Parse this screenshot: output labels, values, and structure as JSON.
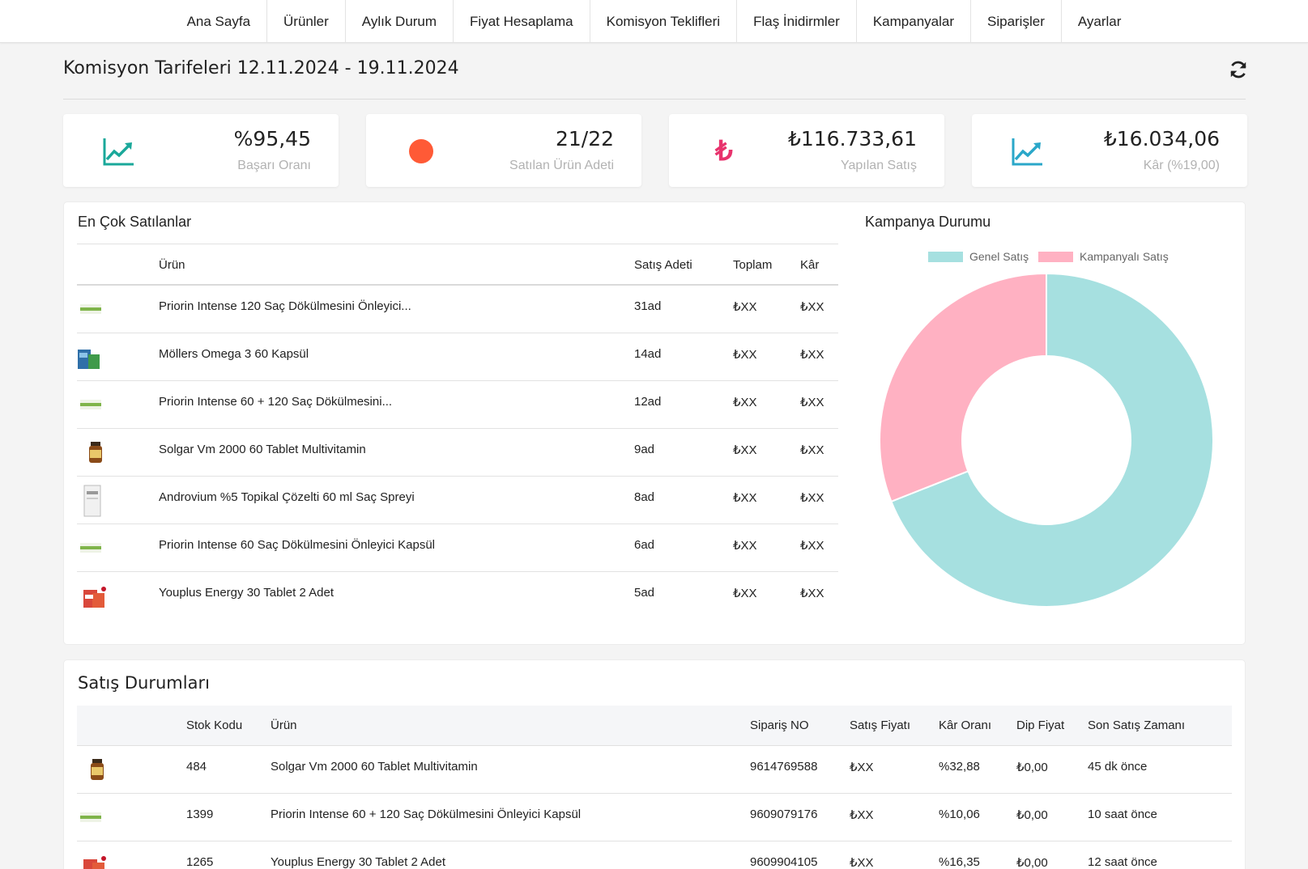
{
  "nav": [
    "Ana Sayfa",
    "Ürünler",
    "Aylık Durum",
    "Fiyat Hesaplama",
    "Komisyon Teklifleri",
    "Flaş İnidirmler",
    "Kampanyalar",
    "Siparişler",
    "Ayarlar"
  ],
  "header": {
    "title": "Komisyon Tarifeleri 12.11.2024 - 19.11.2024"
  },
  "stats": [
    {
      "icon": "trend-up-icon",
      "value": "%95,45",
      "label": "Başarı Oranı",
      "color": "#1aa89a"
    },
    {
      "icon": "circle-dot-icon",
      "value": "21/22",
      "label": "Satılan Ürün Adeti",
      "color": "#ff5a36"
    },
    {
      "icon": "lira-icon",
      "value": "₺116.733,61",
      "label": "Yapılan Satış",
      "color": "#e8336d"
    },
    {
      "icon": "trend-up-icon",
      "value": "₺16.034,06",
      "label": "Kâr (%19,00)",
      "color": "#2aa7c9"
    }
  ],
  "best_sellers": {
    "title": "En Çok Satılanlar",
    "columns": {
      "product": "Ürün",
      "qty": "Satış Adeti",
      "total": "Toplam",
      "profit": "Kâr"
    },
    "rows": [
      {
        "thumb": "green-box",
        "name": "Priorin Intense 120 Saç Dökülmesini Önleyici...",
        "qty": "31ad",
        "total": "₺XX",
        "profit": "₺XX"
      },
      {
        "thumb": "omega-box",
        "name": "Möllers Omega 3 60 Kapsül",
        "qty": "14ad",
        "total": "₺XX",
        "profit": "₺XX"
      },
      {
        "thumb": "green-box",
        "name": "Priorin Intense 60 + 120 Saç Dökülmesini...",
        "qty": "12ad",
        "total": "₺XX",
        "profit": "₺XX"
      },
      {
        "thumb": "bottle",
        "name": "Solgar Vm 2000 60 Tablet Multivitamin",
        "qty": "9ad",
        "total": "₺XX",
        "profit": "₺XX"
      },
      {
        "thumb": "white-box",
        "name": "Androvium %5 Topikal Çözelti 60 ml Saç Spreyi",
        "qty": "8ad",
        "total": "₺XX",
        "profit": "₺XX"
      },
      {
        "thumb": "green-box",
        "name": "Priorin Intense 60 Saç Dökülmesini Önleyici Kapsül",
        "qty": "6ad",
        "total": "₺XX",
        "profit": "₺XX"
      },
      {
        "thumb": "red-box",
        "name": "Youplus Energy 30 Tablet 2 Adet",
        "qty": "5ad",
        "total": "₺XX",
        "profit": "₺XX"
      }
    ]
  },
  "campaign": {
    "title": "Kampanya Durumu",
    "chart_data": {
      "type": "pie",
      "variant": "doughnut",
      "categories": [
        "Genel Satış",
        "Kampanyalı Satış"
      ],
      "values": [
        69,
        31
      ],
      "colors": [
        "#a6e0e0",
        "#ffb1c2"
      ],
      "legend": "top"
    }
  },
  "sales_status": {
    "title": "Satış Durumları",
    "columns": {
      "stock": "Stok Kodu",
      "product": "Ürün",
      "order": "Sipariş NO",
      "price": "Satış Fiyatı",
      "margin": "Kâr Oranı",
      "floor": "Dip Fiyat",
      "last": "Son Satış Zamanı"
    },
    "rows": [
      {
        "thumb": "bottle",
        "stock": "484",
        "product": "Solgar Vm 2000 60 Tablet Multivitamin",
        "order": "9614769588",
        "price": "₺XX",
        "margin": "%32,88",
        "floor": "₺0,00",
        "last": "45 dk önce"
      },
      {
        "thumb": "green-box",
        "stock": "1399",
        "product": "Priorin Intense 60 + 120 Saç Dökülmesini Önleyici Kapsül",
        "order": "9609079176",
        "price": "₺XX",
        "margin": "%10,06",
        "floor": "₺0,00",
        "last": "10 saat önce"
      },
      {
        "thumb": "red-box",
        "stock": "1265",
        "product": "Youplus Energy 30 Tablet 2 Adet",
        "order": "9609904105",
        "price": "₺XX",
        "margin": "%16,35",
        "floor": "₺0,00",
        "last": "12 saat önce"
      }
    ]
  }
}
